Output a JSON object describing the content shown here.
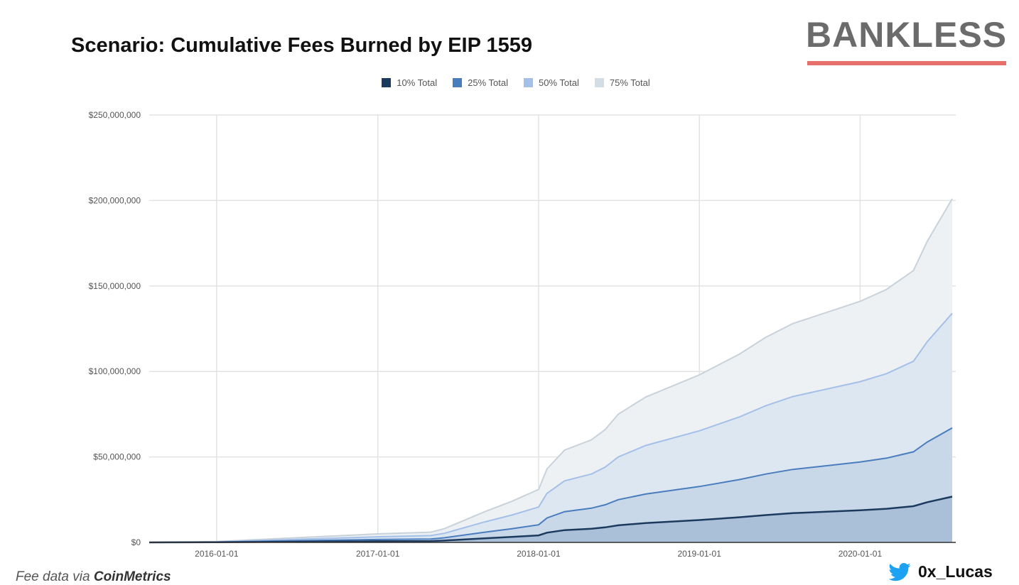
{
  "brand": {
    "logo_text": "BANKLESS",
    "accent": "#e8706a"
  },
  "footer": {
    "source_prefix": "Fee data via",
    "source_name": "CoinMetrics",
    "handle": "0x_Lucas",
    "handle_icon": "twitter-bird-icon"
  },
  "chart_data": {
    "type": "area",
    "title": "Scenario: Cumulative Fees Burned by EIP 1559",
    "xlabel": "",
    "ylabel": "",
    "legend_position": "top",
    "grid": true,
    "xlim": [
      "2015-08-01",
      "2020-07-28"
    ],
    "ylim": [
      0,
      250000000
    ],
    "y_ticks": [
      0,
      50000000,
      100000000,
      150000000,
      200000000,
      250000000
    ],
    "y_tick_labels": [
      "$0",
      "$50,000,000",
      "$100,000,000",
      "$150,000,000",
      "$200,000,000",
      "$250,000,000"
    ],
    "x_ticks": [
      "2016-01-01",
      "2017-01-01",
      "2018-01-01",
      "2019-01-01",
      "2020-01-01"
    ],
    "x": [
      "2015-08-01",
      "2016-01-01",
      "2017-01-01",
      "2017-05-01",
      "2017-06-01",
      "2017-09-01",
      "2017-11-01",
      "2018-01-01",
      "2018-01-20",
      "2018-03-01",
      "2018-05-01",
      "2018-06-01",
      "2018-07-01",
      "2018-09-01",
      "2019-01-01",
      "2019-04-01",
      "2019-06-01",
      "2019-08-01",
      "2020-01-01",
      "2020-03-01",
      "2020-05-01",
      "2020-06-01",
      "2020-07-28"
    ],
    "series": [
      {
        "name": "75% Total",
        "line": "#c9d2da",
        "fill": "#edf1f4",
        "values_musd": [
          0,
          0.5,
          5,
          6,
          8,
          18,
          24,
          31,
          43,
          54,
          60,
          66,
          75,
          85,
          98,
          110,
          120,
          128,
          141,
          148,
          159,
          176,
          201
        ]
      },
      {
        "name": "50% Total",
        "line": "#a4c0e8",
        "fill": "#dde7f1",
        "values_musd": [
          0,
          0.3,
          3.3,
          4,
          5.3,
          12,
          16,
          20.7,
          28.7,
          36,
          40,
          44,
          50,
          56.7,
          65.3,
          73.3,
          80,
          85.3,
          94,
          98.7,
          106,
          117.3,
          134
        ]
      },
      {
        "name": "25% Total",
        "line": "#4a7dbd",
        "fill": "#c8d8e9",
        "values_musd": [
          0,
          0.2,
          1.7,
          2,
          2.7,
          6,
          8,
          10.3,
          14.3,
          18,
          20,
          22,
          25,
          28.3,
          32.7,
          36.7,
          40,
          42.7,
          47,
          49.3,
          53,
          58.7,
          67
        ]
      },
      {
        "name": "10% Total",
        "line": "#1c3a5e",
        "fill": "#aabfd8",
        "values_musd": [
          0,
          0.1,
          0.7,
          0.8,
          1.1,
          2.4,
          3.2,
          4.1,
          5.7,
          7.2,
          8,
          8.8,
          10,
          11.3,
          13.1,
          14.7,
          16,
          17.1,
          18.8,
          19.7,
          21.2,
          23.5,
          26.8
        ]
      }
    ],
    "legend_colors": [
      "#1c3a5e",
      "#4a7dbd",
      "#a4c0e8",
      "#d3dde6"
    ]
  }
}
